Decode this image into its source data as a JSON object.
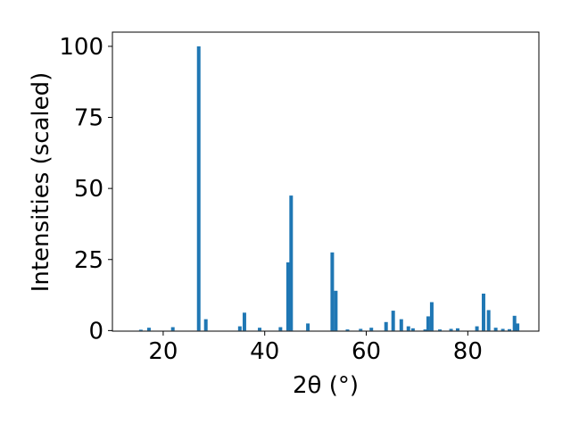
{
  "chart_data": {
    "type": "bar",
    "x_label": "2θ (°)",
    "y_label": "Intensities (scaled)",
    "x": [
      15.6,
      17.2,
      21.9,
      27.0,
      28.4,
      35.1,
      36.0,
      39.0,
      43.1,
      44.6,
      45.2,
      48.5,
      53.3,
      54.0,
      56.3,
      58.9,
      61.0,
      63.9,
      65.3,
      66.9,
      68.3,
      69.2,
      71.6,
      72.2,
      72.9,
      74.5,
      76.7,
      78.0,
      81.8,
      83.1,
      84.1,
      85.5,
      86.9,
      88.2,
      89.2,
      89.8
    ],
    "values": [
      0.3,
      1,
      1.2,
      100,
      4,
      1.5,
      6.3,
      1,
      1.2,
      24,
      47.5,
      2.5,
      27.5,
      14,
      0.4,
      0.6,
      1,
      3,
      7,
      4,
      1.5,
      0.8,
      0.4,
      5,
      10,
      0.4,
      0.6,
      0.8,
      1.5,
      13,
      7.2,
      1,
      0.6,
      0.5,
      5.2,
      2.5
    ],
    "color": "#1f77b4",
    "xlim": [
      10,
      94
    ],
    "xticks": [
      20,
      40,
      60,
      80
    ],
    "ylim": [
      -0.2,
      105
    ],
    "yticks": [
      0,
      25,
      50,
      75,
      100
    ]
  }
}
